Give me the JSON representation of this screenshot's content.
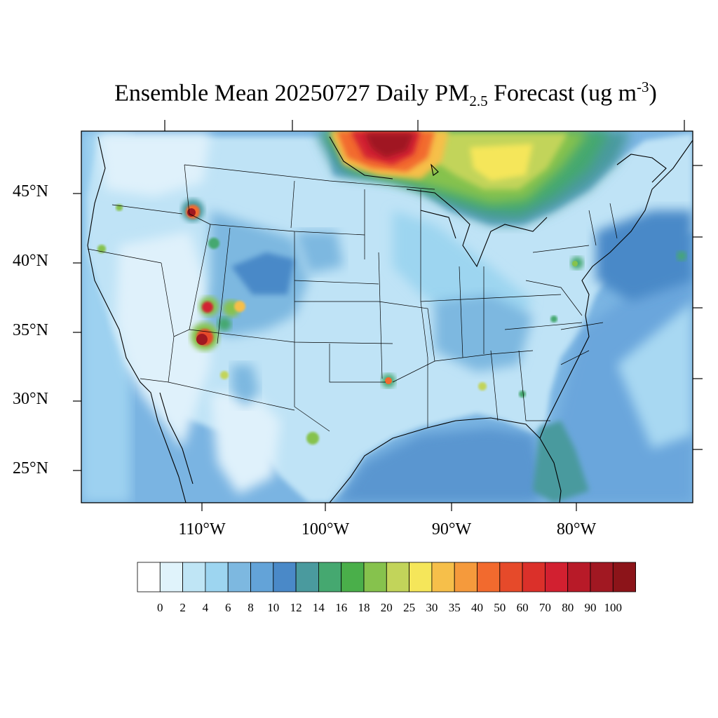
{
  "title": {
    "prefix": "Ensemble Mean 20250727 Daily PM",
    "sub": "2.5",
    "middle": " Forecast (ug m",
    "sup": "-3",
    "suffix": ")"
  },
  "lat_labels": [
    "45°N",
    "40°N",
    "35°N",
    "30°N",
    "25°N"
  ],
  "lon_labels": [
    "110°W",
    "100°W",
    "90°W",
    "80°W"
  ],
  "colorbar": {
    "labels": [
      "0",
      "2",
      "4",
      "6",
      "8",
      "10",
      "12",
      "14",
      "16",
      "18",
      "20",
      "25",
      "30",
      "35",
      "40",
      "50",
      "60",
      "70",
      "80",
      "90",
      "100"
    ],
    "colors": [
      "#ffffff",
      "#e0f3fb",
      "#bfe5f5",
      "#9dd5f0",
      "#7db8e0",
      "#63a3d8",
      "#4a89c8",
      "#4a9a9e",
      "#45a870",
      "#4aaf4a",
      "#86c24d",
      "#c2d45a",
      "#f5e65a",
      "#f6bf4a",
      "#f59a3c",
      "#f26a2e",
      "#e64a2a",
      "#db302a",
      "#d22030",
      "#b81a28",
      "#a11822",
      "#8c1419"
    ]
  },
  "colors": {
    "frame": "#000000",
    "ocean_base": "#6aa6dc",
    "land_base": "#bfe3f6",
    "smoke_core": "#a01820"
  },
  "map": {
    "projection": "Lambert Conformal",
    "region": "CONUS",
    "field": "PM2.5"
  }
}
